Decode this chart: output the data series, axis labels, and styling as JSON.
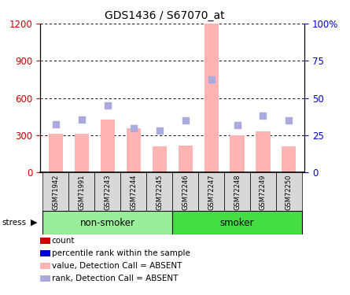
{
  "title": "GDS1436 / S67070_at",
  "samples": [
    "GSM71942",
    "GSM71991",
    "GSM72243",
    "GSM72244",
    "GSM72245",
    "GSM72246",
    "GSM72247",
    "GSM72248",
    "GSM72249",
    "GSM72250"
  ],
  "bar_values": [
    310,
    315,
    430,
    355,
    210,
    220,
    1200,
    300,
    330,
    210
  ],
  "rank_values": [
    390,
    430,
    540,
    360,
    340,
    420,
    750,
    380,
    460,
    420
  ],
  "ylim_left": [
    0,
    1200
  ],
  "ylim_right": [
    0,
    100
  ],
  "yticks_left": [
    0,
    300,
    600,
    900,
    1200
  ],
  "yticks_right": [
    0,
    25,
    50,
    75,
    100
  ],
  "ytick_labels_right": [
    "0",
    "25",
    "50",
    "75",
    "100%"
  ],
  "bar_color": "#ffb3b3",
  "rank_color": "#aaaadd",
  "nonsmoker_color": "#99ee99",
  "smoker_color": "#44dd44",
  "axis_color_left": "#cc0000",
  "axis_color_right": "#0000cc",
  "legend_items": [
    {
      "label": "count",
      "color": "#cc0000"
    },
    {
      "label": "percentile rank within the sample",
      "color": "#0000cc"
    },
    {
      "label": "value, Detection Call = ABSENT",
      "color": "#ffb3b3"
    },
    {
      "label": "rank, Detection Call = ABSENT",
      "color": "#aaaadd"
    }
  ],
  "nonsmoker_range": [
    0,
    4
  ],
  "smoker_range": [
    5,
    9
  ]
}
